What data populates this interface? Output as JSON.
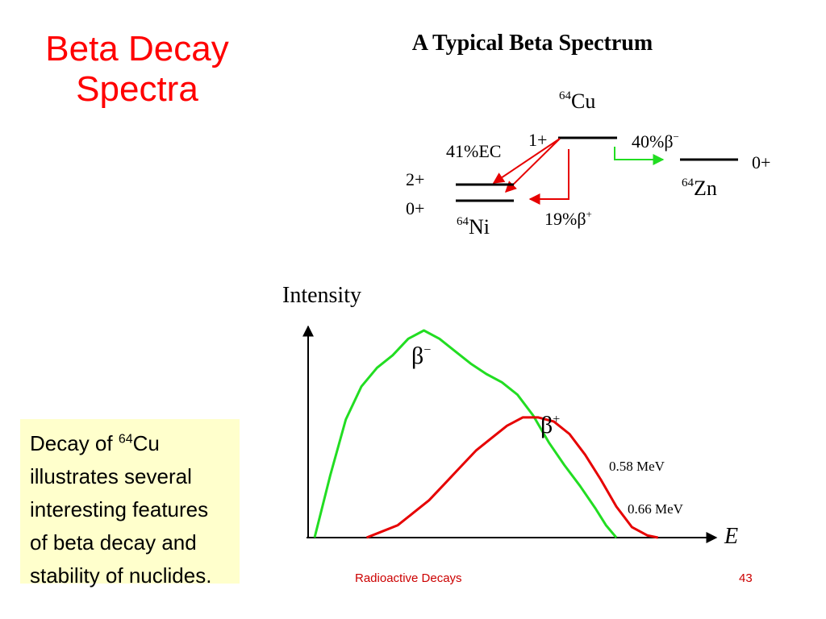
{
  "slide": {
    "title_line1": "Beta Decay",
    "title_line2": "Spectra",
    "footer": "Radioactive Decays",
    "page_number": "43"
  },
  "diagram": {
    "title": "A Typical Beta Spectrum",
    "parent": {
      "mass": "64",
      "symbol": "Cu",
      "spin": "1+"
    },
    "branches": [
      {
        "label": "41%EC",
        "color": "#e60000"
      },
      {
        "label_prefix": "19%",
        "symbol": "β",
        "charge": "+",
        "color": "#e60000"
      },
      {
        "label_prefix": "40%",
        "symbol": "β",
        "charge": "−",
        "color": "#22dd22"
      }
    ],
    "ni": {
      "mass": "64",
      "symbol": "Ni",
      "levels": [
        "2+",
        "0+"
      ]
    },
    "zn": {
      "mass": "64",
      "symbol": "Zn",
      "level": "0+"
    }
  },
  "chart_data": {
    "type": "line",
    "ylabel": "Intensity",
    "xlabel": "E",
    "series": [
      {
        "name": "β−",
        "color": "#22dd22",
        "endpoint_label": "0.58 MeV",
        "x": [
          0,
          0.03,
          0.06,
          0.09,
          0.12,
          0.15,
          0.18,
          0.21,
          0.24,
          0.27,
          0.3,
          0.33,
          0.36,
          0.39,
          0.42,
          0.45,
          0.48,
          0.51,
          0.54,
          0.56,
          0.58
        ],
        "y": [
          0,
          0.3,
          0.57,
          0.73,
          0.82,
          0.88,
          0.96,
          1.0,
          0.96,
          0.9,
          0.84,
          0.79,
          0.75,
          0.69,
          0.59,
          0.46,
          0.35,
          0.25,
          0.14,
          0.06,
          0
        ]
      },
      {
        "name": "β+",
        "color": "#e60000",
        "endpoint_label": "0.66 MeV",
        "x": [
          0.1,
          0.13,
          0.16,
          0.19,
          0.22,
          0.25,
          0.28,
          0.31,
          0.34,
          0.37,
          0.4,
          0.43,
          0.46,
          0.49,
          0.52,
          0.55,
          0.58,
          0.61,
          0.64,
          0.66
        ],
        "y": [
          0,
          0.03,
          0.06,
          0.12,
          0.18,
          0.26,
          0.34,
          0.42,
          0.48,
          0.54,
          0.58,
          0.58,
          0.56,
          0.5,
          0.4,
          0.28,
          0.15,
          0.05,
          0.01,
          0
        ]
      }
    ]
  },
  "callout": {
    "prefix": "Decay of ",
    "mass": "64",
    "symbol": "Cu",
    "rest": "illustrates several interesting features of beta decay and stability of nuclides."
  }
}
